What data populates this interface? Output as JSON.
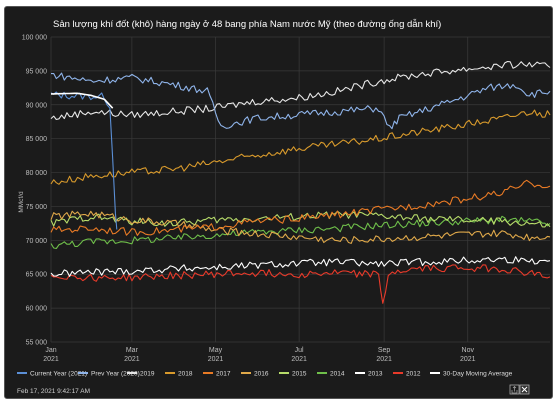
{
  "chart_data": {
    "type": "line",
    "title": "Sản lượng khí đốt (khô) hàng ngày ở 48 bang phía Nam nước Mỹ (theo đường ống dẫn khí)",
    "ylabel": "MMcf/d",
    "ylim": [
      55000,
      100000
    ],
    "y_ticks": [
      "100 000",
      "95 000",
      "90 000",
      "85 000",
      "80 000",
      "75 000",
      "70 000",
      "65 000",
      "60 000",
      "55 000"
    ],
    "x_ticks": [
      {
        "month": "Jan",
        "year": "2021",
        "day": 1
      },
      {
        "month": "Mar",
        "year": "2021",
        "day": 60
      },
      {
        "month": "May",
        "year": "2021",
        "day": 121
      },
      {
        "month": "Jul",
        "year": "2021",
        "day": 182
      },
      {
        "month": "Sep",
        "year": "2021",
        "day": 244
      },
      {
        "month": "Nov",
        "year": "2021",
        "day": 305
      }
    ],
    "x_range": [
      1,
      365
    ],
    "grid": true,
    "legend_position": "bottom",
    "series": [
      {
        "name": "Current Year (2021)",
        "color": "#5b8fd6",
        "x": [
          1,
          20,
          40,
          44,
          46,
          48,
          49
        ],
        "y": [
          91500,
          91300,
          91200,
          89500,
          82000,
          74000,
          71600
        ]
      },
      {
        "name": "Prev Year (2020)",
        "color": "#8fb4ea",
        "x": [
          1,
          30,
          60,
          90,
          115,
          125,
          150,
          180,
          210,
          240,
          248,
          255,
          270,
          300,
          320,
          340,
          350,
          365
        ],
        "y": [
          94500,
          93500,
          94000,
          93000,
          92000,
          86800,
          88000,
          88500,
          89000,
          89500,
          86500,
          88000,
          89000,
          91000,
          92500,
          93000,
          91500,
          92000
        ]
      },
      {
        "name": "2019",
        "color": "#e6e6e6",
        "x": [
          1,
          30,
          60,
          90,
          120,
          150,
          180,
          210,
          240,
          270,
          300,
          330,
          350,
          365
        ],
        "y": [
          88000,
          89000,
          88500,
          89000,
          89500,
          90500,
          91000,
          92000,
          93500,
          94500,
          95200,
          95800,
          96000,
          95500
        ]
      },
      {
        "name": "2018",
        "color": "#d89a2c",
        "x": [
          1,
          30,
          60,
          90,
          120,
          150,
          180,
          210,
          240,
          270,
          300,
          330,
          350,
          365
        ],
        "y": [
          78500,
          79500,
          80000,
          80500,
          81500,
          82500,
          83500,
          84200,
          85000,
          86000,
          87000,
          88000,
          89000,
          88500
        ]
      },
      {
        "name": "2017",
        "color": "#e87a25",
        "x": [
          1,
          30,
          60,
          90,
          120,
          150,
          180,
          210,
          240,
          270,
          300,
          330,
          350,
          365
        ],
        "y": [
          71500,
          71800,
          71200,
          71500,
          72000,
          72800,
          73200,
          73800,
          74500,
          75200,
          76000,
          77000,
          78500,
          78000
        ]
      },
      {
        "name": "2016",
        "color": "#e0a94a",
        "x": [
          1,
          30,
          60,
          90,
          120,
          150,
          180,
          210,
          240,
          270,
          300,
          330,
          350,
          365
        ],
        "y": [
          73500,
          74000,
          73000,
          72500,
          71500,
          71000,
          70500,
          70000,
          70200,
          70500,
          70800,
          71000,
          70500,
          70500
        ]
      },
      {
        "name": "2015",
        "color": "#b7dc6a",
        "x": [
          1,
          30,
          60,
          90,
          120,
          150,
          180,
          210,
          240,
          270,
          300,
          330,
          350,
          365
        ],
        "y": [
          72500,
          73500,
          72800,
          72500,
          73000,
          73200,
          73500,
          73800,
          73600,
          73200,
          73000,
          72800,
          72500,
          72000
        ]
      },
      {
        "name": "2014",
        "color": "#6fbf4a",
        "x": [
          1,
          30,
          60,
          90,
          120,
          150,
          180,
          210,
          240,
          270,
          300,
          330,
          350,
          365
        ],
        "y": [
          69200,
          69800,
          70000,
          70300,
          70800,
          71200,
          71500,
          71800,
          72200,
          72500,
          72800,
          73000,
          72800,
          72500
        ]
      },
      {
        "name": "2013",
        "color": "#ffffff",
        "x": [
          1,
          30,
          60,
          90,
          120,
          150,
          180,
          210,
          240,
          270,
          300,
          330,
          350,
          365
        ],
        "y": [
          65000,
          65300,
          65500,
          65800,
          66000,
          66300,
          66600,
          66800,
          66500,
          66800,
          67000,
          67200,
          67000,
          67000
        ]
      },
      {
        "name": "2012",
        "color": "#e83a2a",
        "x": [
          1,
          30,
          60,
          90,
          120,
          150,
          180,
          210,
          240,
          243,
          247,
          250,
          270,
          300,
          330,
          350,
          365
        ],
        "y": [
          64800,
          64500,
          64500,
          64800,
          65000,
          65200,
          65000,
          65200,
          65000,
          60200,
          64800,
          65300,
          65800,
          66000,
          65800,
          65200,
          64600
        ]
      },
      {
        "name": "30-Day Moving Average",
        "color": "#ffffff",
        "x": [
          1,
          20,
          30,
          40,
          46
        ],
        "y": [
          91600,
          91700,
          91400,
          90800,
          89500
        ]
      }
    ]
  },
  "footer": {
    "timestamp": "Feb 17, 2021 9:42:17 AM"
  },
  "export_icon": "export-icon"
}
